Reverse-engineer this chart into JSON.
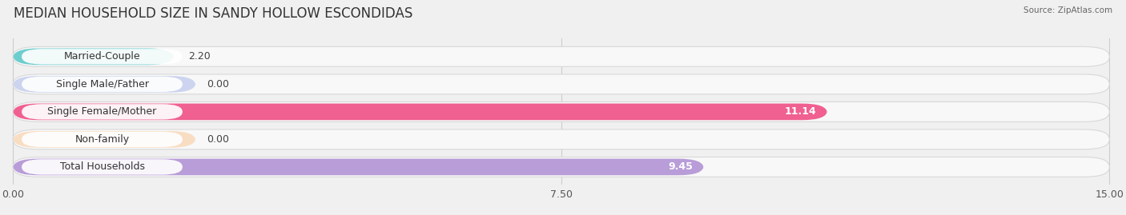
{
  "title": "MEDIAN HOUSEHOLD SIZE IN SANDY HOLLOW ESCONDIDAS",
  "source": "Source: ZipAtlas.com",
  "categories": [
    "Married-Couple",
    "Single Male/Father",
    "Single Female/Mother",
    "Non-family",
    "Total Households"
  ],
  "values": [
    2.2,
    0.0,
    11.14,
    0.0,
    9.45
  ],
  "bar_colors": [
    "#6ecece",
    "#a8b8e8",
    "#f06090",
    "#f8c898",
    "#b89dd8"
  ],
  "bar_edge_colors": [
    "#5bbfbf",
    "#90a8d8",
    "#e05080",
    "#e8b888",
    "#a08cc8"
  ],
  "xlim": [
    0,
    15.0
  ],
  "xticks": [
    0.0,
    7.5,
    15.0
  ],
  "xtick_labels": [
    "0.00",
    "7.50",
    "15.00"
  ],
  "background_color": "#f0f0f0",
  "bar_bg_color": "#f8f8f8",
  "title_fontsize": 12,
  "label_fontsize": 9,
  "value_fontsize": 9,
  "figsize": [
    14.06,
    2.69
  ],
  "dpi": 100
}
